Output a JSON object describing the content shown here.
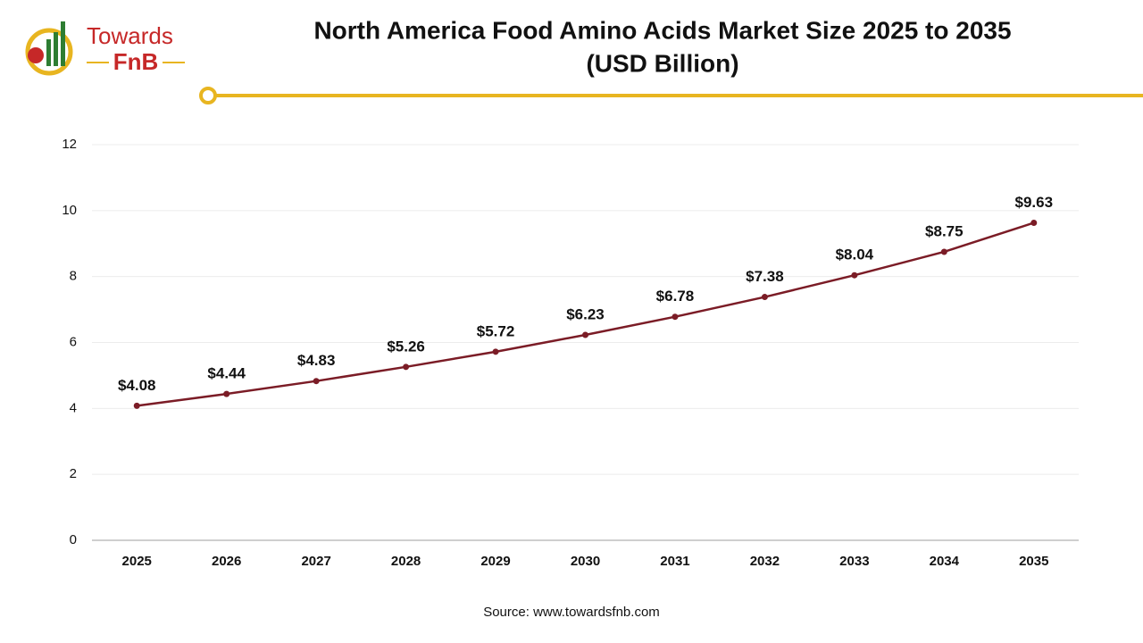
{
  "logo": {
    "line1": "Towards",
    "line2": "FnB"
  },
  "chart_data": {
    "type": "line",
    "title": "North America Food Amino Acids Market Size 2025 to 2035",
    "subtitle": "(USD Billion)",
    "categories": [
      "2025",
      "2026",
      "2027",
      "2028",
      "2029",
      "2030",
      "2031",
      "2032",
      "2033",
      "2034",
      "2035"
    ],
    "series": [
      {
        "name": "Market Size",
        "color": "#7b1c26",
        "values": [
          4.08,
          4.44,
          4.83,
          5.26,
          5.72,
          6.23,
          6.78,
          7.38,
          8.04,
          8.75,
          9.63
        ],
        "value_labels": [
          "$4.08",
          "$4.44",
          "$4.83",
          "$5.26",
          "$5.72",
          "$6.23",
          "$6.78",
          "$7.38",
          "$8.04",
          "$8.75",
          "$9.63"
        ]
      }
    ],
    "ylim": [
      0,
      12
    ],
    "yticks": [
      0,
      2,
      4,
      6,
      8,
      10,
      12
    ],
    "grid": true,
    "source": "Source: www.towardsfnb.com"
  }
}
